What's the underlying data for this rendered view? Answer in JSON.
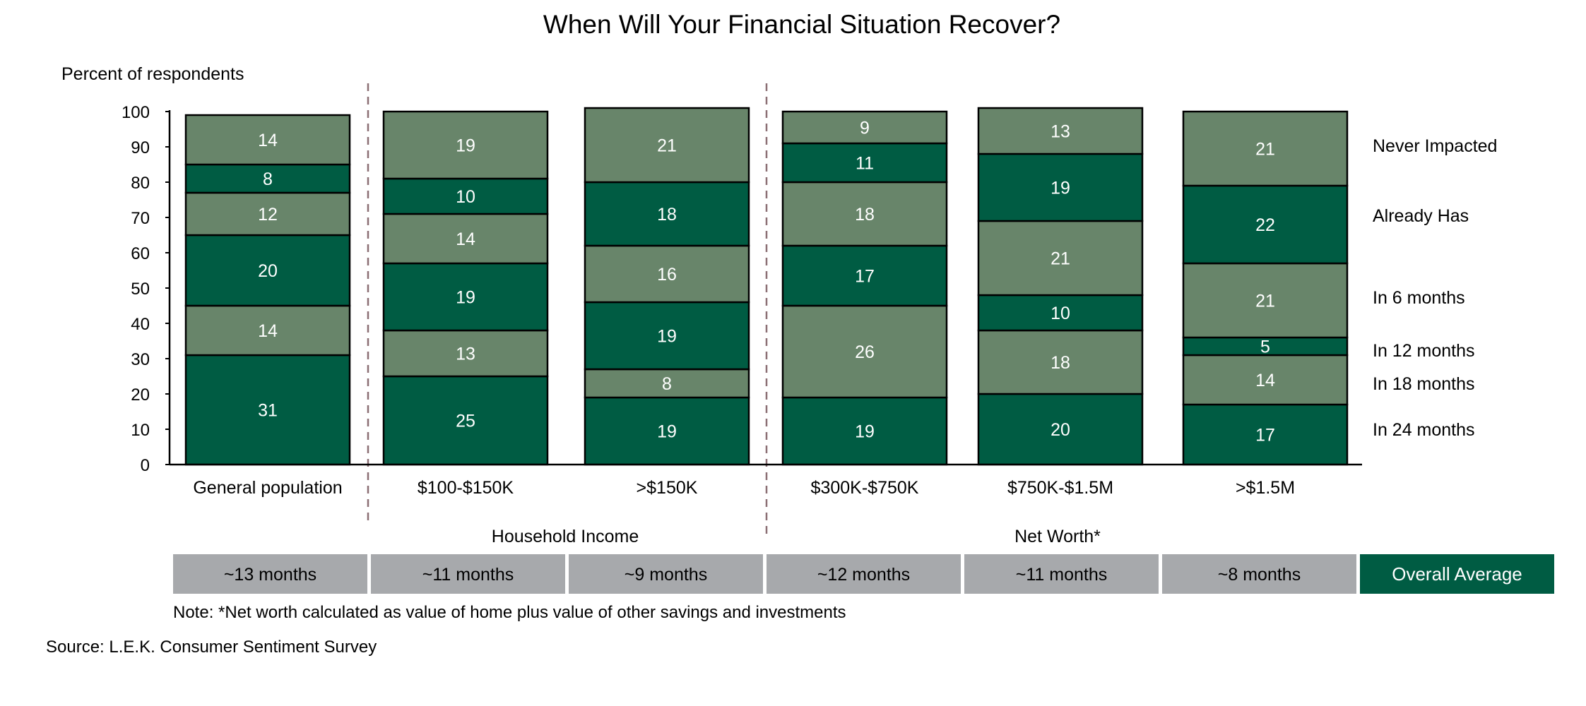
{
  "colors": {
    "light_green": "#68856a",
    "dark_green": "#005c43",
    "gray_box": "#a7a9ac",
    "divider": "#8b6f74",
    "axis": "#000000"
  },
  "chart_data": {
    "type": "bar",
    "stacked": true,
    "title": "When Will Your Financial Situation Recover?",
    "ylabel": "Percent of respondents",
    "ylim": [
      0,
      100
    ],
    "yticks": [
      0,
      10,
      20,
      30,
      40,
      50,
      60,
      70,
      80,
      90,
      100
    ],
    "categories": [
      "General population",
      "$100-$150K",
      ">$150K",
      "$300K-$750K",
      "$750K-$1.5M",
      ">$1.5M"
    ],
    "groups": [
      {
        "label": "Household Income",
        "categories": [
          "$100-$150K",
          ">$150K"
        ]
      },
      {
        "label": "Net Worth*",
        "categories": [
          "$300K-$750K",
          "$750K-$1.5M",
          ">$1.5M"
        ]
      }
    ],
    "series": [
      {
        "name": "In 24 months",
        "values": [
          31,
          25,
          19,
          19,
          20,
          17
        ]
      },
      {
        "name": "In 18 months",
        "values": [
          14,
          13,
          8,
          26,
          18,
          14
        ]
      },
      {
        "name": "In 12 months",
        "values": [
          20,
          19,
          19,
          17,
          10,
          5
        ]
      },
      {
        "name": "In 6 months",
        "values": [
          12,
          14,
          16,
          18,
          21,
          21
        ]
      },
      {
        "name": "Already Has",
        "values": [
          8,
          10,
          18,
          11,
          19,
          22
        ]
      },
      {
        "name": "Never Impacted",
        "values": [
          14,
          19,
          21,
          9,
          13,
          21
        ]
      }
    ],
    "averages": [
      "~13 months",
      "~11 months",
      "~9 months",
      "~12 months",
      "~11 months",
      "~8 months"
    ],
    "averages_label": "Overall Average",
    "note": "Note: *Net worth calculated as value of home plus value of other savings and investments",
    "source": "Source: L.E.K. Consumer Sentiment Survey"
  }
}
